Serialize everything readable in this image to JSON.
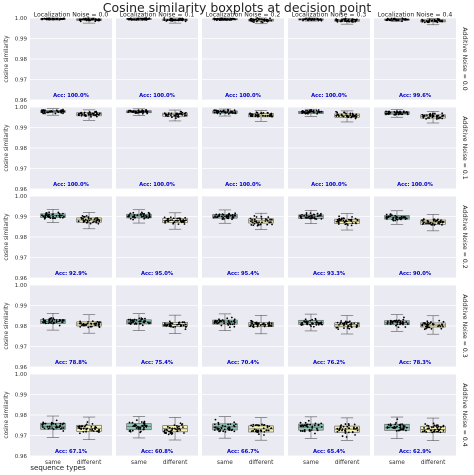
{
  "chart_data": {
    "type": "boxplot",
    "title": "Cosine similarity boxplots at decision point",
    "ylabel": "cosine similarity",
    "xlabel": "sequence types",
    "categories": [
      "same",
      "different"
    ],
    "col_label_prefix": "Localization Noise = ",
    "row_label_prefix": "Additive Noise = ",
    "col_values": [
      "0.0",
      "0.1",
      "0.2",
      "0.3",
      "0.4"
    ],
    "row_values": [
      "0.0",
      "0.1",
      "0.2",
      "0.3",
      "0.4"
    ],
    "ylim": [
      0.96,
      1.0
    ],
    "yticks": [
      0.96,
      0.97,
      0.98,
      0.99,
      1.0
    ],
    "ytick_labels": [
      "0.96",
      "0.97",
      "0.98",
      "0.99",
      "1.00"
    ],
    "colors": {
      "same": "#8dc6b5",
      "different": "#f4f0b0",
      "panel_bg": "#eaeaf2",
      "grid": "#ffffff",
      "acc_text": "#0000cc",
      "points": "#000000"
    },
    "accuracy": [
      [
        "Acc: 100.0%",
        "Acc: 100.0%",
        "Acc: 100.0%",
        "Acc: 100.0%",
        "Acc: 99.6%"
      ],
      [
        "Acc: 100.0%",
        "Acc: 100.0%",
        "Acc: 100.0%",
        "Acc: 100.0%",
        "Acc: 100.0%"
      ],
      [
        "Acc: 92.9%",
        "Acc: 95.0%",
        "Acc: 95.4%",
        "Acc: 93.3%",
        "Acc: 90.0%"
      ],
      [
        "Acc: 78.8%",
        "Acc: 75.4%",
        "Acc: 70.4%",
        "Acc: 76.2%",
        "Acc: 78.3%"
      ],
      [
        "Acc: 67.1%",
        "Acc: 60.8%",
        "Acc: 66.7%",
        "Acc: 65.4%",
        "Acc: 62.9%"
      ]
    ],
    "boxes": [
      [
        {
          "same": [
            0.999,
            0.9993,
            0.9995,
            0.9998,
            1.0
          ],
          "different": [
            0.9975,
            0.9988,
            0.9992,
            0.9996,
            1.0
          ]
        },
        {
          "same": [
            0.9988,
            0.9993,
            0.9995,
            0.9998,
            1.0
          ],
          "different": [
            0.9975,
            0.9987,
            0.9991,
            0.9995,
            1.0
          ]
        },
        {
          "same": [
            0.9987,
            0.9992,
            0.9994,
            0.9997,
            1.0
          ],
          "different": [
            0.9972,
            0.9985,
            0.999,
            0.9994,
            1.0
          ]
        },
        {
          "same": [
            0.9985,
            0.999,
            0.9993,
            0.9996,
            1.0
          ],
          "different": [
            0.997,
            0.9984,
            0.9988,
            0.9993,
            0.9998
          ]
        },
        {
          "same": [
            0.9983,
            0.9989,
            0.9992,
            0.9995,
            0.9999
          ],
          "different": [
            0.9967,
            0.9981,
            0.9986,
            0.9991,
            0.9997
          ]
        }
      ],
      [
        {
          "same": [
            0.996,
            0.9973,
            0.9978,
            0.9983,
            0.9992
          ],
          "different": [
            0.9935,
            0.9957,
            0.9965,
            0.9972,
            0.9986
          ]
        },
        {
          "same": [
            0.9958,
            0.9972,
            0.9977,
            0.9982,
            0.9991
          ],
          "different": [
            0.9932,
            0.9955,
            0.9963,
            0.997,
            0.9985
          ]
        },
        {
          "same": [
            0.9956,
            0.997,
            0.9976,
            0.9981,
            0.999
          ],
          "different": [
            0.993,
            0.9952,
            0.996,
            0.9968,
            0.9983
          ]
        },
        {
          "same": [
            0.9954,
            0.9968,
            0.9974,
            0.9979,
            0.9989
          ],
          "different": [
            0.9927,
            0.995,
            0.9958,
            0.9966,
            0.9981
          ]
        },
        {
          "same": [
            0.995,
            0.9965,
            0.9971,
            0.9977,
            0.9988
          ],
          "different": [
            0.9922,
            0.9946,
            0.9954,
            0.9962,
            0.9979
          ]
        }
      ],
      [
        {
          "same": [
            0.987,
            0.9895,
            0.9905,
            0.9913,
            0.9935
          ],
          "different": [
            0.984,
            0.9872,
            0.9883,
            0.9893,
            0.992
          ]
        },
        {
          "same": [
            0.9868,
            0.9893,
            0.9903,
            0.9911,
            0.9933
          ],
          "different": [
            0.9838,
            0.987,
            0.9881,
            0.9891,
            0.9918
          ]
        },
        {
          "same": [
            0.9867,
            0.9892,
            0.9902,
            0.991,
            0.9932
          ],
          "different": [
            0.9836,
            0.9868,
            0.9879,
            0.9889,
            0.9916
          ]
        },
        {
          "same": [
            0.9865,
            0.989,
            0.99,
            0.9908,
            0.993
          ],
          "different": [
            0.9834,
            0.9866,
            0.9877,
            0.9887,
            0.9914
          ]
        },
        {
          "same": [
            0.9862,
            0.9887,
            0.9897,
            0.9905,
            0.9928
          ],
          "different": [
            0.983,
            0.9862,
            0.9873,
            0.9883,
            0.991
          ]
        }
      ],
      [
        {
          "same": [
            0.978,
            0.9812,
            0.9822,
            0.9832,
            0.9862
          ],
          "different": [
            0.9765,
            0.98,
            0.981,
            0.982,
            0.9855
          ]
        },
        {
          "same": [
            0.9778,
            0.981,
            0.982,
            0.983,
            0.986
          ],
          "different": [
            0.9763,
            0.9798,
            0.9808,
            0.9818,
            0.9853
          ]
        },
        {
          "same": [
            0.9777,
            0.9809,
            0.9819,
            0.9829,
            0.9859
          ],
          "different": [
            0.9762,
            0.9797,
            0.9807,
            0.9817,
            0.9852
          ]
        },
        {
          "same": [
            0.9776,
            0.9808,
            0.9818,
            0.9828,
            0.9858
          ],
          "different": [
            0.9761,
            0.9796,
            0.9806,
            0.9816,
            0.9851
          ]
        },
        {
          "same": [
            0.9774,
            0.9806,
            0.9816,
            0.9826,
            0.9856
          ],
          "different": [
            0.976,
            0.9795,
            0.9805,
            0.9815,
            0.985
          ]
        }
      ],
      [
        {
          "same": [
            0.969,
            0.973,
            0.9745,
            0.976,
            0.9795
          ],
          "different": [
            0.968,
            0.972,
            0.9735,
            0.975,
            0.979
          ]
        },
        {
          "same": [
            0.9688,
            0.9728,
            0.9743,
            0.9758,
            0.9793
          ],
          "different": [
            0.9678,
            0.9718,
            0.9733,
            0.9748,
            0.9788
          ]
        },
        {
          "same": [
            0.9687,
            0.9727,
            0.9742,
            0.9757,
            0.9792
          ],
          "different": [
            0.9677,
            0.9717,
            0.9732,
            0.9747,
            0.9787
          ]
        },
        {
          "same": [
            0.9686,
            0.9726,
            0.9741,
            0.9756,
            0.9791
          ],
          "different": [
            0.9676,
            0.9716,
            0.9731,
            0.9746,
            0.9786
          ]
        },
        {
          "same": [
            0.9685,
            0.9725,
            0.974,
            0.9755,
            0.979
          ],
          "different": [
            0.9675,
            0.9715,
            0.973,
            0.9745,
            0.9785
          ]
        }
      ]
    ]
  }
}
